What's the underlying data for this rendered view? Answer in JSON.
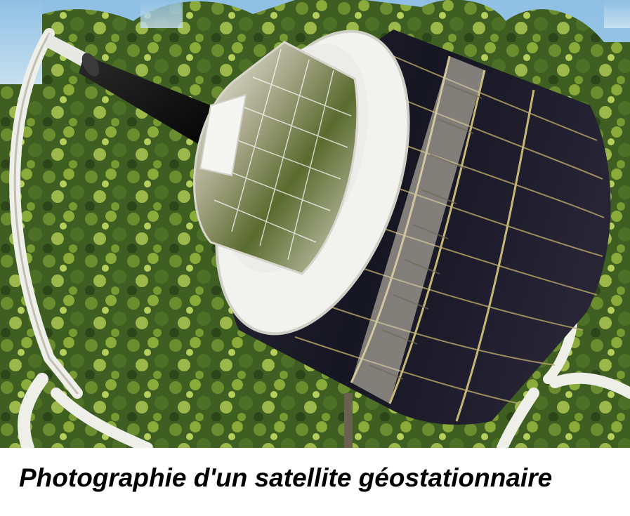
{
  "caption": "Photographie d'un satellite géostationnaire",
  "colors": {
    "sky": "#9ec8e6",
    "foliage_dark": "#2f4a1c",
    "foliage_mid": "#5f7f2c",
    "foliage_light": "#a7c24a",
    "solar_panel": "#1f1d2a",
    "frame": "#eeeeea",
    "caption_text": "#000000"
  },
  "photo": {
    "subject": "satellite model on white support frame",
    "setting": "trees and sky background"
  }
}
